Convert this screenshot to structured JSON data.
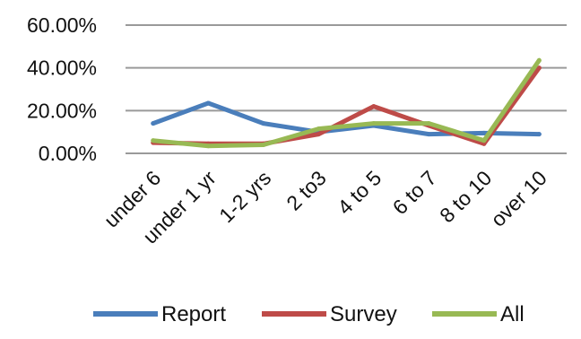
{
  "chart_data": {
    "type": "line",
    "title": "",
    "xlabel": "",
    "ylabel": "",
    "categories": [
      "under 6",
      "under 1 yr",
      "1-2 yrs",
      "2 to3",
      "4 to 5",
      "6 to 7",
      "8 to 10",
      "over 10"
    ],
    "y_tick_labels": [
      "60.00%",
      "40.00%",
      "20.00%",
      "0.00%"
    ],
    "ylim": [
      0,
      60
    ],
    "y_unit": "%",
    "grid": true,
    "legend_position": "bottom",
    "series": [
      {
        "name": "Report",
        "color": "#4a7ebb",
        "values": [
          14,
          23.5,
          14,
          10,
          13,
          9,
          9.5,
          9
        ]
      },
      {
        "name": "Survey",
        "color": "#be4b48",
        "values": [
          5,
          4.5,
          4.5,
          9,
          22,
          13,
          4.5,
          40
        ]
      },
      {
        "name": "All",
        "color": "#98b954",
        "values": [
          6,
          3.5,
          4,
          11.5,
          14,
          14,
          6,
          43.5
        ]
      }
    ]
  }
}
